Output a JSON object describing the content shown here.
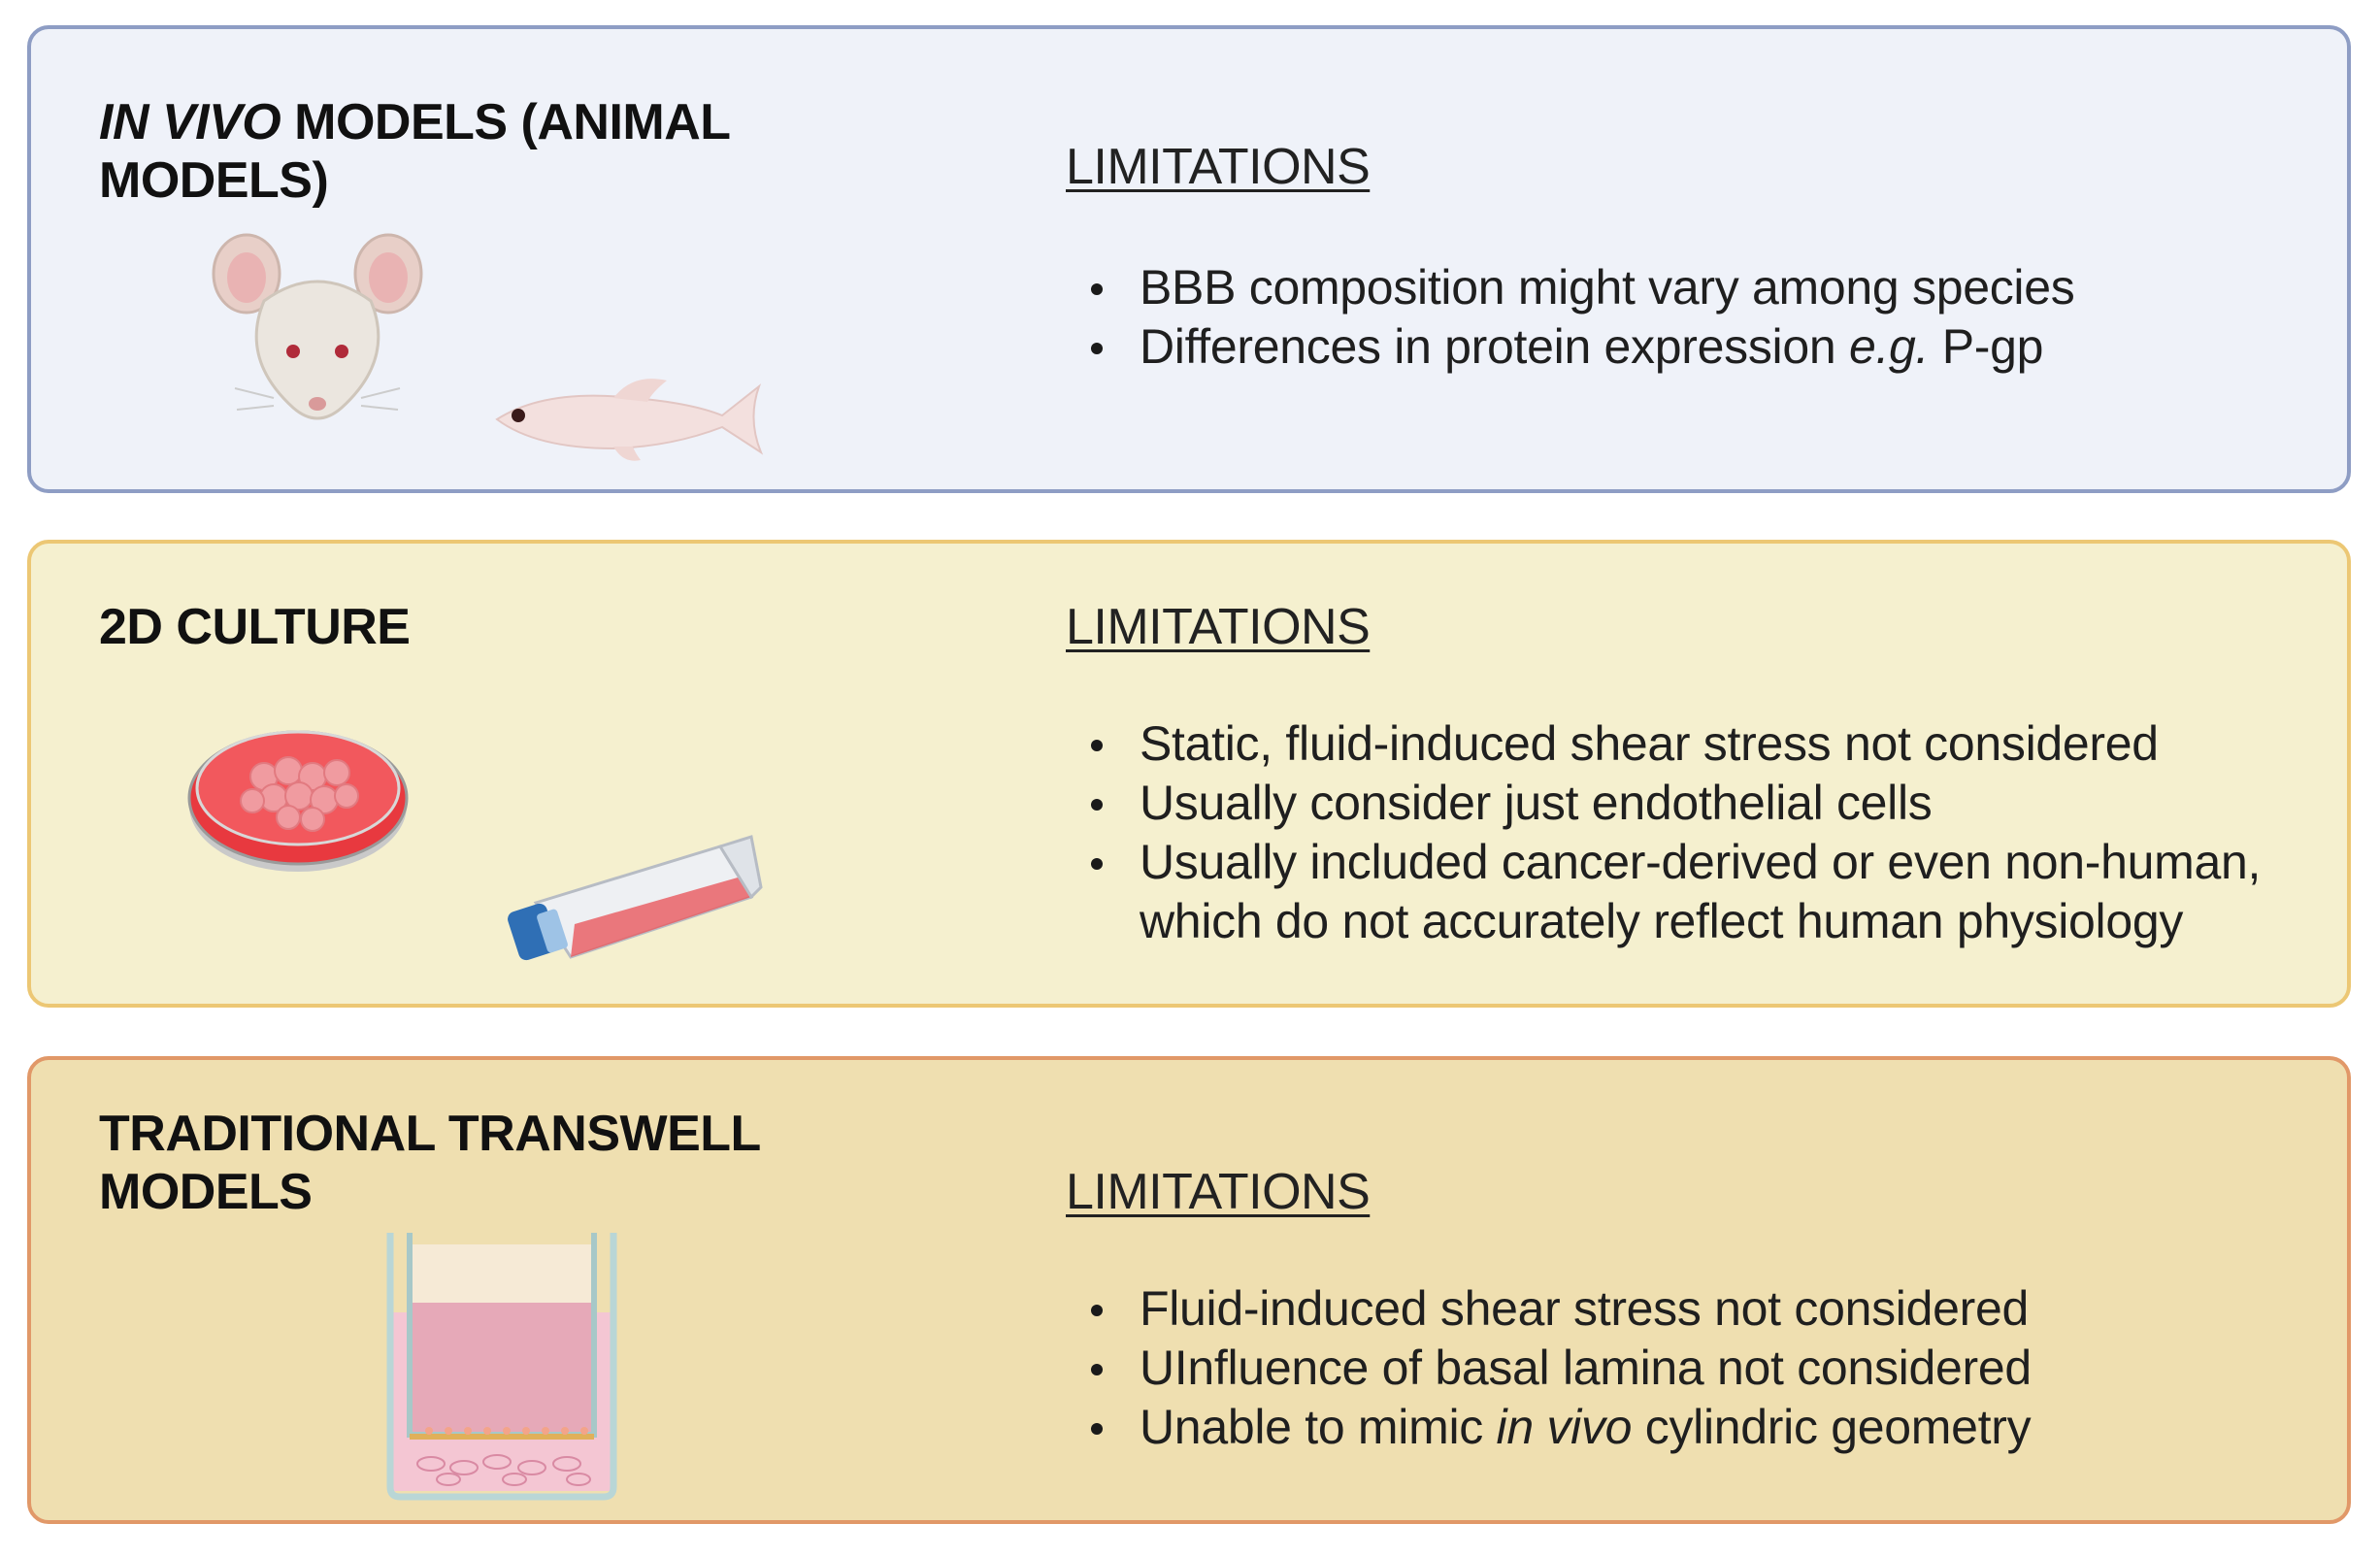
{
  "panels": [
    {
      "title_pre": "IN VIVO",
      "title_rest": " MODELS (ANIMAL MODELS)",
      "limitations_label": "LIMITATIONS",
      "items": [
        {
          "a": "BBB composition might vary among species",
          "em": "",
          "b": ""
        },
        {
          "a": "Differences in protein expression ",
          "em": "e.g.",
          "b": " P-gp"
        }
      ],
      "illustrations": [
        "mouse-icon",
        "zebrafish-icon"
      ]
    },
    {
      "title_pre": "",
      "title_rest": "2D CULTURE",
      "limitations_label": "LIMITATIONS",
      "items": [
        {
          "a": "Static, fluid-induced shear stress not considered",
          "em": "",
          "b": ""
        },
        {
          "a": "Usually consider just endothelial cells",
          "em": "",
          "b": ""
        },
        {
          "a": "Usually included cancer-derived or even non-human, which do not accurately reflect human physiology",
          "em": "",
          "b": ""
        }
      ],
      "illustrations": [
        "petri-dish-icon",
        "culture-flask-icon"
      ]
    },
    {
      "title_pre": "",
      "title_rest": "TRADITIONAL TRANSWELL MODELS",
      "limitations_label": "LIMITATIONS",
      "items": [
        {
          "a": "Fluid-induced shear stress not considered",
          "em": "",
          "b": ""
        },
        {
          "a": "UInfluence of basal lamina not considered",
          "em": "",
          "b": ""
        },
        {
          "a": "Unable to mimic ",
          "em": "in vivo",
          "b": " cylindric geometry"
        }
      ],
      "illustrations": [
        "transwell-insert-icon"
      ]
    }
  ],
  "colors": {
    "panel1_bg": "#eff2f9",
    "panel1_border": "#8e9dc4",
    "panel2_bg": "#f5f0cf",
    "panel2_border": "#ecc774",
    "panel3_bg": "#efdfb0",
    "panel3_border": "#e19868"
  }
}
